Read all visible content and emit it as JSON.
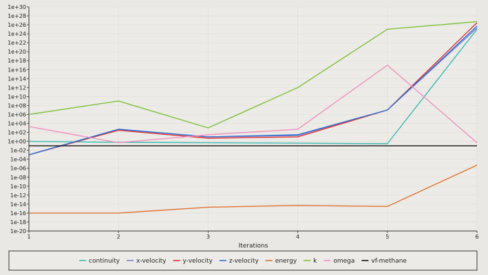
{
  "chart_data": {
    "type": "line",
    "xlabel": "Iterations",
    "ylabel": "",
    "y_scale": "log",
    "ylim": [
      1e-20,
      1e+30
    ],
    "xlim": [
      1,
      6
    ],
    "grid": true,
    "legend_position": "bottom",
    "x_ticks": [
      "1",
      "2",
      "3",
      "4",
      "5",
      "6"
    ],
    "y_ticks": [
      "1e+30",
      "1e+28",
      "1e+26",
      "1e+24",
      "1e+22",
      "1e+20",
      "1e+18",
      "1e+16",
      "1e+14",
      "1e+12",
      "1e+10",
      "1e+08",
      "1e+06",
      "1e+04",
      "1e+02",
      "1e+00",
      "1e-02",
      "1e-04",
      "1e-06",
      "1e-08",
      "1e-10",
      "1e-12",
      "1e-14",
      "1e-16",
      "1e-18",
      "1e-20"
    ],
    "x": [
      1,
      2,
      3,
      4,
      5,
      6
    ],
    "series": [
      {
        "name": "continuity",
        "color": "#3bb8b0",
        "values": [
          1.0,
          0.6,
          0.5,
          0.4,
          0.3,
          1e+25
        ]
      },
      {
        "name": "x-velocity",
        "color": "#7a7fd0",
        "values": [
          0.001,
          500.0,
          10.0,
          20.0,
          10000000.0,
          2e+25
        ]
      },
      {
        "name": "y-velocity",
        "color": "#e03030",
        "values": [
          0.001,
          300.0,
          5.0,
          10.0,
          10000000.0,
          3e+26
        ]
      },
      {
        "name": "z-velocity",
        "color": "#2a6fd6",
        "values": [
          0.001,
          500.0,
          10.0,
          30.0,
          10000000.0,
          5e+25
        ]
      },
      {
        "name": "energy",
        "color": "#e07030",
        "values": [
          1e-16,
          1e-16,
          2e-15,
          5e-15,
          3e-15,
          5e-06
        ]
      },
      {
        "name": "k",
        "color": "#7ec03a",
        "values": [
          1000000.0,
          1000000000.0,
          1000.0,
          1000000000000.0,
          1e+25,
          5e+26
        ]
      },
      {
        "name": "omega",
        "color": "#f090c0",
        "values": [
          2000.0,
          0.5,
          30.0,
          500.0,
          1e+17,
          0.5
        ]
      },
      {
        "name": "vf-methane",
        "color": "#111111",
        "values": [
          0.1,
          0.1,
          0.1,
          0.1,
          0.1,
          0.1
        ]
      }
    ]
  }
}
